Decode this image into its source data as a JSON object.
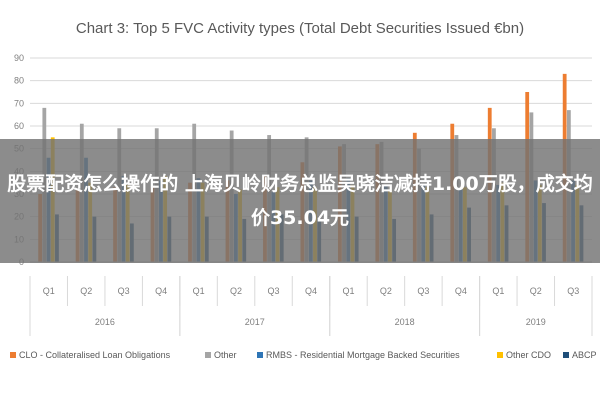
{
  "overlay": {
    "text": "股票配资怎么操作的 上海贝岭财务总监吴晓洁减持1.00万股，成交均价35.04元"
  },
  "chart_data": {
    "type": "bar",
    "title": "Chart 3: Top 5 FVC Activity types (Total Debt Securities Issued €bn)",
    "xlabel": "",
    "ylabel": "",
    "ylim": [
      0,
      90
    ],
    "yticks": [
      0,
      10,
      20,
      30,
      40,
      50,
      60,
      70,
      80,
      90
    ],
    "grid": true,
    "legend_position": "bottom",
    "categories": [
      "Q1",
      "Q2",
      "Q3",
      "Q4",
      "Q1",
      "Q2",
      "Q3",
      "Q4",
      "Q1",
      "Q2",
      "Q3",
      "Q4",
      "Q1",
      "Q2",
      "Q3"
    ],
    "groups": [
      {
        "label": "2016",
        "span": 4
      },
      {
        "label": "2017",
        "span": 4
      },
      {
        "label": "2018",
        "span": 4
      },
      {
        "label": "2019",
        "span": 3
      }
    ],
    "series": [
      {
        "name": "CLO - Collateralised Loan Obligations",
        "color": "#ed7d31",
        "values": [
          30,
          32,
          33,
          33,
          35,
          36,
          38,
          44,
          51,
          52,
          57,
          61,
          68,
          75,
          83
        ]
      },
      {
        "name": "Other",
        "color": "#a5a5a5",
        "values": [
          68,
          61,
          59,
          59,
          61,
          58,
          56,
          55,
          52,
          53,
          50,
          56,
          59,
          66,
          67
        ]
      },
      {
        "name": "RMBS - Residential Mortgage Backed Securities",
        "color": "#2e75b6",
        "values": [
          46,
          46,
          38,
          36,
          37,
          30,
          31,
          36,
          37,
          34,
          34,
          32,
          34,
          36,
          36
        ]
      },
      {
        "name": "Other CDO",
        "color": "#ffc000",
        "values": [
          55,
          35,
          34,
          38,
          35,
          32,
          33,
          33,
          34,
          32,
          33,
          33,
          35,
          34,
          34
        ]
      },
      {
        "name": "ABCP",
        "color": "#1f4e79",
        "values": [
          21,
          20,
          17,
          20,
          20,
          19,
          21,
          19,
          20,
          19,
          21,
          24,
          25,
          26,
          25
        ]
      }
    ]
  }
}
